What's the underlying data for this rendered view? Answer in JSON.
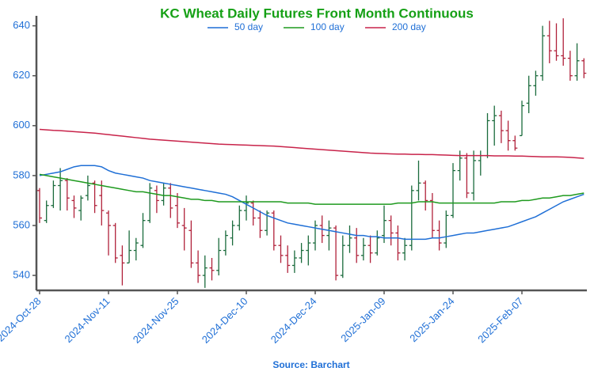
{
  "chart_data": {
    "type": "ohlc",
    "title": "KC Wheat Daily Futures Front Month Continuous",
    "source": "Source: Barchart",
    "up_color": "#1a6b3c",
    "down_color": "#b0213a",
    "categories": [
      "2024-Oct-28",
      null,
      null,
      null,
      null,
      null,
      null,
      null,
      null,
      null,
      "2024-Nov-11",
      null,
      null,
      null,
      null,
      null,
      null,
      null,
      null,
      null,
      "2024-Nov-25",
      null,
      null,
      null,
      null,
      null,
      null,
      null,
      null,
      null,
      "2024-Dec-10",
      null,
      null,
      null,
      null,
      null,
      null,
      null,
      null,
      null,
      "2024-Dec-24",
      null,
      null,
      null,
      null,
      null,
      null,
      null,
      null,
      null,
      "2025-Jan-09",
      null,
      null,
      null,
      null,
      null,
      null,
      null,
      null,
      null,
      "2025-Jan-24",
      null,
      null,
      null,
      null,
      null,
      null,
      null,
      null,
      null,
      "2025-Feb-07",
      null,
      null,
      null,
      null,
      null,
      null,
      null,
      null,
      null
    ],
    "ohlc": [
      [
        574,
        575,
        561,
        563
      ],
      [
        562,
        570,
        561,
        568
      ],
      [
        568,
        578,
        567,
        576
      ],
      [
        576,
        583,
        566,
        578
      ],
      [
        578,
        579,
        566,
        571
      ],
      [
        570,
        572,
        563,
        567
      ],
      [
        566,
        572,
        562,
        571
      ],
      [
        572,
        580,
        570,
        576
      ],
      [
        577,
        578,
        565,
        568
      ],
      [
        572,
        578,
        560,
        566
      ],
      [
        565,
        566,
        548,
        560
      ],
      [
        560,
        561,
        545,
        547
      ],
      [
        548,
        552,
        536,
        545
      ],
      [
        545,
        558,
        545,
        550
      ],
      [
        550,
        555,
        546,
        553
      ],
      [
        552,
        565,
        551,
        562
      ],
      [
        562,
        577,
        561,
        575
      ],
      [
        574,
        576,
        565,
        570
      ],
      [
        570,
        577,
        568,
        575
      ],
      [
        575,
        577,
        563,
        567
      ],
      [
        568,
        573,
        559,
        561
      ],
      [
        560,
        567,
        550,
        559
      ],
      [
        558,
        562,
        543,
        545
      ],
      [
        545,
        550,
        537,
        540
      ],
      [
        540,
        548,
        535,
        543
      ],
      [
        543,
        547,
        538,
        542
      ],
      [
        542,
        555,
        540,
        550
      ],
      [
        550,
        558,
        548,
        556
      ],
      [
        555,
        562,
        552,
        560
      ],
      [
        560,
        568,
        558,
        566
      ],
      [
        566,
        572,
        562,
        569
      ],
      [
        569,
        570,
        560,
        563
      ],
      [
        563,
        566,
        555,
        558
      ],
      [
        558,
        566,
        556,
        565
      ],
      [
        565,
        566,
        550,
        552
      ],
      [
        552,
        556,
        545,
        548
      ],
      [
        548,
        552,
        541,
        544
      ],
      [
        544,
        550,
        541,
        547
      ],
      [
        547,
        553,
        545,
        550
      ],
      [
        550,
        556,
        544,
        553
      ],
      [
        553,
        562,
        550,
        560
      ],
      [
        560,
        564,
        553,
        556
      ],
      [
        556,
        562,
        550,
        559
      ],
      [
        559,
        560,
        538,
        540
      ],
      [
        540,
        556,
        539,
        552
      ],
      [
        552,
        560,
        549,
        555
      ],
      [
        555,
        559,
        545,
        548
      ],
      [
        548,
        555,
        546,
        552
      ],
      [
        552,
        556,
        545,
        549
      ],
      [
        549,
        558,
        548,
        555
      ],
      [
        556,
        568,
        553,
        562
      ],
      [
        562,
        564,
        552,
        557
      ],
      [
        557,
        560,
        546,
        549
      ],
      [
        549,
        555,
        546,
        552
      ],
      [
        552,
        576,
        550,
        574
      ],
      [
        574,
        586,
        570,
        577
      ],
      [
        577,
        578,
        566,
        570
      ],
      [
        570,
        573,
        555,
        558
      ],
      [
        558,
        562,
        550,
        553
      ],
      [
        553,
        566,
        551,
        564
      ],
      [
        564,
        585,
        563,
        582
      ],
      [
        582,
        590,
        578,
        587
      ],
      [
        587,
        589,
        571,
        573
      ],
      [
        573,
        590,
        570,
        586
      ],
      [
        586,
        590,
        580,
        588
      ],
      [
        588,
        605,
        587,
        602
      ],
      [
        602,
        608,
        592,
        604
      ],
      [
        604,
        606,
        593,
        598
      ],
      [
        598,
        602,
        590,
        594
      ],
      [
        594,
        596,
        590,
        591
      ],
      [
        596,
        610,
        596,
        608
      ],
      [
        609,
        620,
        605,
        616
      ],
      [
        616,
        622,
        612,
        620
      ],
      [
        620,
        640,
        618,
        636
      ],
      [
        636,
        642,
        625,
        630
      ],
      [
        630,
        641,
        626,
        628
      ],
      [
        628,
        643,
        624,
        627
      ],
      [
        627,
        630,
        618,
        620
      ],
      [
        620,
        633,
        618,
        626
      ],
      [
        626,
        627,
        619,
        621
      ]
    ],
    "series": [
      {
        "name": "50 day",
        "color": "#1f6fd6",
        "values": [
          580,
          580.5,
          581,
          581.5,
          582.5,
          583.5,
          584,
          584,
          584,
          583.5,
          582,
          581,
          580.5,
          580,
          579.5,
          579,
          578,
          577.5,
          577,
          576.5,
          576,
          575.5,
          575,
          574.5,
          574,
          573.5,
          573,
          572.5,
          571.5,
          570,
          568.5,
          567,
          565.5,
          564,
          563,
          562,
          561,
          560.5,
          560,
          559.5,
          559,
          558.5,
          558,
          557.5,
          557,
          556.5,
          556,
          556,
          555.5,
          555.5,
          555,
          555,
          555,
          554.5,
          554.5,
          554.5,
          554.5,
          555,
          555,
          555.5,
          556,
          556.5,
          557,
          557,
          557.5,
          558,
          558.5,
          559,
          559.5,
          560.5,
          561.5,
          562.5,
          563.5,
          565,
          566.5,
          568,
          569.5,
          570.5,
          571.5,
          572.5
        ]
      },
      {
        "name": "100 day",
        "color": "#1e9a1e",
        "values": [
          580.5,
          580,
          579.5,
          579,
          578.5,
          578,
          577.5,
          577,
          576.5,
          576,
          575.5,
          575,
          574.5,
          574,
          573.5,
          573.5,
          573,
          572.5,
          572,
          572,
          571.5,
          571,
          570.5,
          570.5,
          570,
          570,
          569.5,
          569.5,
          569.5,
          569.5,
          569.5,
          569.5,
          569.5,
          569.5,
          569.5,
          569.5,
          569,
          569,
          569,
          569,
          568.5,
          568.5,
          568.5,
          568.5,
          568.5,
          568.5,
          568.5,
          568.5,
          568.5,
          568.5,
          568.5,
          568.5,
          569,
          569,
          569,
          569.5,
          569.5,
          569.5,
          569,
          569,
          569,
          569,
          569,
          569,
          569,
          569,
          569,
          569.5,
          569.5,
          569.5,
          570,
          570,
          570.5,
          571,
          571,
          571.5,
          572,
          572,
          572.5,
          573
        ]
      },
      {
        "name": "200 day",
        "color": "#c8234a",
        "values": [
          598.5,
          598.3,
          598.1,
          598,
          597.8,
          597.6,
          597.4,
          597.2,
          597,
          596.7,
          596.4,
          596.1,
          595.8,
          595.5,
          595.2,
          594.9,
          594.6,
          594.4,
          594.2,
          594,
          593.8,
          593.6,
          593.4,
          593.2,
          593,
          592.8,
          592.6,
          592.5,
          592.4,
          592.3,
          592.2,
          592.1,
          592,
          591.9,
          591.8,
          591.6,
          591.4,
          591.2,
          591,
          590.8,
          590.6,
          590.4,
          590.2,
          590,
          589.8,
          589.6,
          589.4,
          589.2,
          589,
          588.9,
          588.8,
          588.7,
          588.6,
          588.6,
          588.5,
          588.5,
          588.4,
          588.4,
          588.3,
          588.2,
          588.1,
          588,
          588,
          588,
          588,
          588,
          587.9,
          587.9,
          587.9,
          587.8,
          587.8,
          587.7,
          587.6,
          587.5,
          587.5,
          587.5,
          587.4,
          587.3,
          587.1,
          586.9
        ]
      }
    ],
    "ylim": [
      534,
      644
    ],
    "yticks": [
      540,
      560,
      580,
      600,
      620,
      640
    ]
  }
}
